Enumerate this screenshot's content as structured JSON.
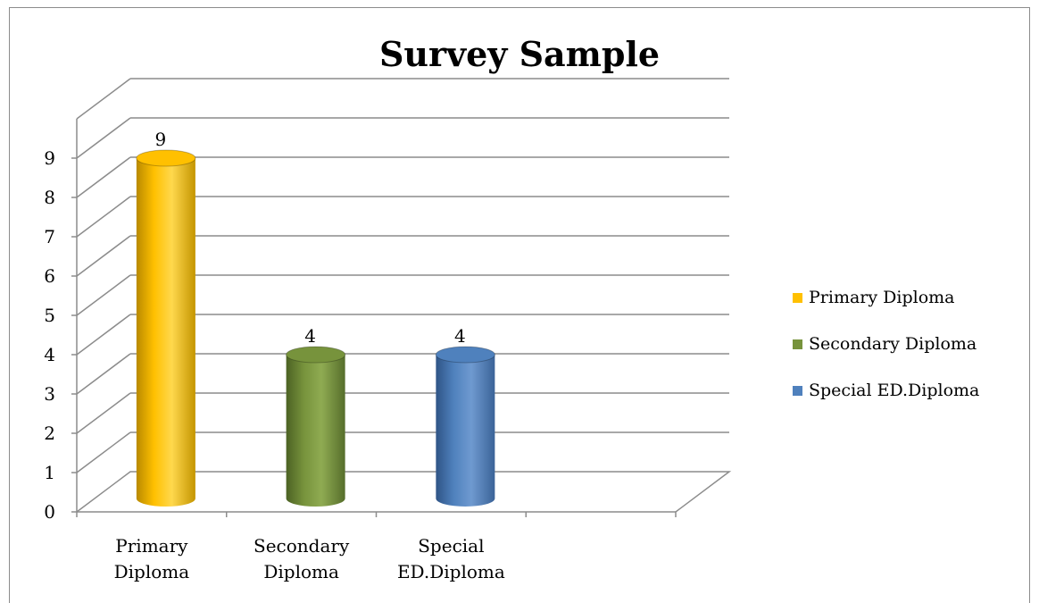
{
  "chart_data": {
    "type": "bar",
    "title": "Survey Sample",
    "categories": [
      "Primary Diploma",
      "Secondary Diploma",
      "Special ED.Diploma"
    ],
    "category_lines": [
      [
        "Primary",
        "Diploma"
      ],
      [
        "Secondary",
        "Diploma"
      ],
      [
        "Special",
        "ED.Diploma"
      ]
    ],
    "series": [
      {
        "name": "Primary Diploma",
        "values": [
          9,
          null,
          null
        ],
        "color": "#ffc000"
      },
      {
        "name": "Secondary Diploma",
        "values": [
          null,
          4,
          null
        ],
        "color": "#77933c"
      },
      {
        "name": "Special ED.Diploma",
        "values": [
          null,
          null,
          4
        ],
        "color": "#4f81bd"
      }
    ],
    "data_labels": [
      "9",
      "4",
      "4"
    ],
    "ylim": [
      0,
      10
    ],
    "yticks": [
      "0",
      "1",
      "2",
      "3",
      "4",
      "5",
      "6",
      "7",
      "8",
      "9"
    ],
    "xlabel": "",
    "ylabel": "",
    "grid": true,
    "legend_position": "right",
    "style": "3d-cylinder"
  }
}
